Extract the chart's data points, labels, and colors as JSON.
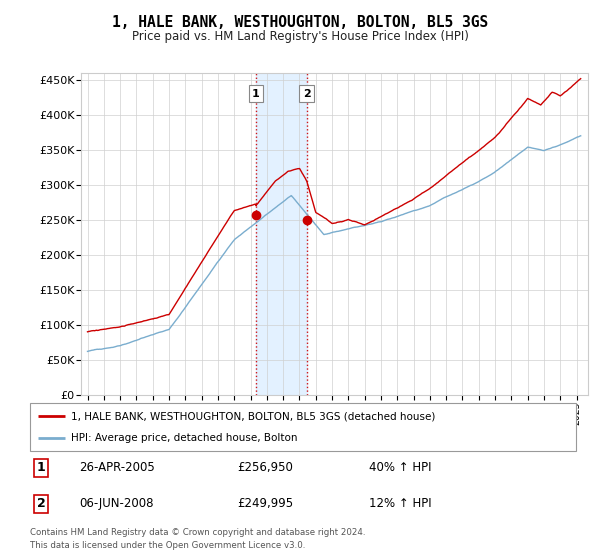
{
  "title": "1, HALE BANK, WESTHOUGHTON, BOLTON, BL5 3GS",
  "subtitle": "Price paid vs. HM Land Registry's House Price Index (HPI)",
  "legend_line1": "1, HALE BANK, WESTHOUGHTON, BOLTON, BL5 3GS (detached house)",
  "legend_line2": "HPI: Average price, detached house, Bolton",
  "transaction1_label": "1",
  "transaction1_date": "26-APR-2005",
  "transaction1_price": "£256,950",
  "transaction1_hpi": "40% ↑ HPI",
  "transaction2_label": "2",
  "transaction2_date": "06-JUN-2008",
  "transaction2_price": "£249,995",
  "transaction2_hpi": "12% ↑ HPI",
  "footer": "Contains HM Land Registry data © Crown copyright and database right 2024.\nThis data is licensed under the Open Government Licence v3.0.",
  "house_color": "#cc0000",
  "hpi_color": "#7aadce",
  "shading_color": "#ddeeff",
  "ylim_min": 0,
  "ylim_max": 460000,
  "transaction1_year": 2005.32,
  "transaction2_year": 2008.44,
  "t1_price": 256950,
  "t2_price": 249995
}
